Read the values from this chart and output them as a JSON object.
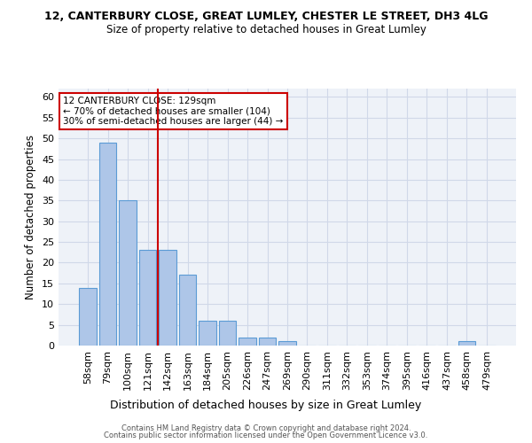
{
  "title1": "12, CANTERBURY CLOSE, GREAT LUMLEY, CHESTER LE STREET, DH3 4LG",
  "title2": "Size of property relative to detached houses in Great Lumley",
  "xlabel": "Distribution of detached houses by size in Great Lumley",
  "ylabel": "Number of detached properties",
  "categories": [
    "58sqm",
    "79sqm",
    "100sqm",
    "121sqm",
    "142sqm",
    "163sqm",
    "184sqm",
    "205sqm",
    "226sqm",
    "247sqm",
    "269sqm",
    "290sqm",
    "311sqm",
    "332sqm",
    "353sqm",
    "374sqm",
    "395sqm",
    "416sqm",
    "437sqm",
    "458sqm",
    "479sqm"
  ],
  "values": [
    14,
    49,
    35,
    23,
    23,
    17,
    6,
    6,
    2,
    2,
    1,
    0,
    0,
    0,
    0,
    0,
    0,
    0,
    0,
    1,
    0
  ],
  "bar_color": "#aec6e8",
  "bar_edge_color": "#5b9bd5",
  "grid_color": "#d0d8e8",
  "background_color": "#eef2f8",
  "red_line_x": 3.5,
  "annotation_line1": "12 CANTERBURY CLOSE: 129sqm",
  "annotation_line2": "← 70% of detached houses are smaller (104)",
  "annotation_line3": "30% of semi-detached houses are larger (44) →",
  "annotation_box_color": "#ffffff",
  "annotation_box_edge_color": "#cc0000",
  "footer1": "Contains HM Land Registry data © Crown copyright and database right 2024.",
  "footer2": "Contains public sector information licensed under the Open Government Licence v3.0.",
  "ylim": [
    0,
    62
  ],
  "yticks": [
    0,
    5,
    10,
    15,
    20,
    25,
    30,
    35,
    40,
    45,
    50,
    55,
    60
  ]
}
